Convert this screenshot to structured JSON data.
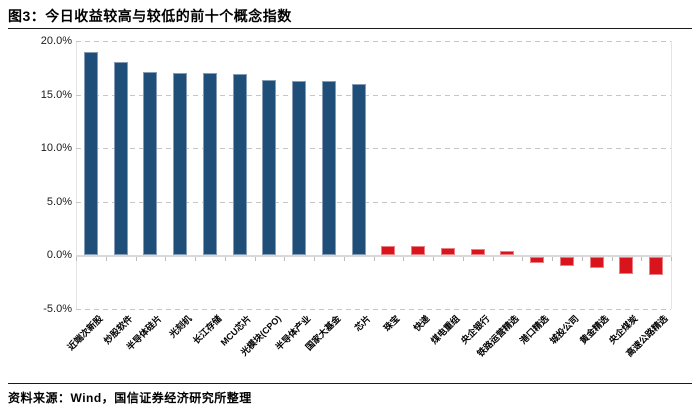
{
  "figure": {
    "title": "图3：今日收益较高与较低的前十个概念指数",
    "source": "资料来源：Wind，国信证券经济研究所整理"
  },
  "chart_data": {
    "type": "bar",
    "title": "图3：今日收益较高与较低的前十个概念指数",
    "unit": "%",
    "categories": [
      "近端次新股",
      "炒股软件",
      "半导体硅片",
      "光刻机",
      "长江存储",
      "MCU芯片",
      "光模块(CPO)",
      "半导体产业",
      "国家大基金",
      "芯片",
      "珠宝",
      "快递",
      "煤电重组",
      "央企银行",
      "铁路运营精选",
      "港口精选",
      "城投公司",
      "黄金精选",
      "央企煤炭",
      "高速公路精选"
    ],
    "values": [
      19.0,
      18.0,
      17.1,
      17.0,
      17.0,
      16.9,
      16.4,
      16.3,
      16.3,
      16.0,
      0.85,
      0.85,
      0.7,
      0.6,
      0.4,
      -0.55,
      -0.85,
      -1.0,
      -1.6,
      -1.65
    ],
    "color_split_index": 10,
    "bar_colors": {
      "gainers": "#1F4E79",
      "losers": "#D9141D"
    },
    "ylim": [
      -5,
      20
    ],
    "yticks": [
      {
        "value": 20,
        "label": "20.0%"
      },
      {
        "value": 15,
        "label": "15.0%"
      },
      {
        "value": 10,
        "label": "10.0%"
      },
      {
        "value": 5,
        "label": "5.0%"
      },
      {
        "value": 0,
        "label": "0.0%"
      },
      {
        "value": -5,
        "label": "-5.0%"
      }
    ],
    "grid": "horizontal-dashed",
    "legend": "none",
    "xlabel": "",
    "ylabel": ""
  }
}
